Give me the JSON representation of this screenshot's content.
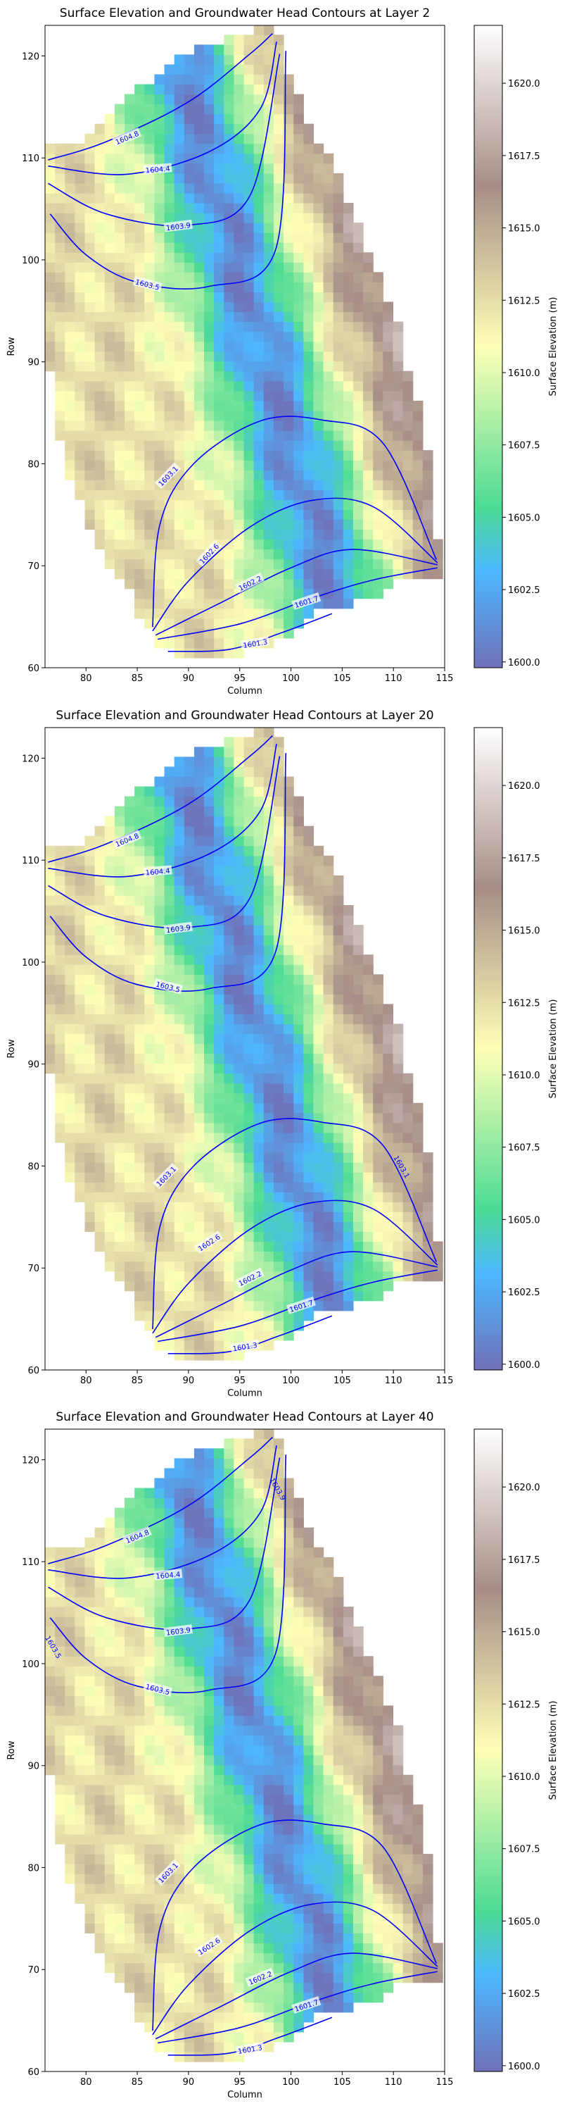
{
  "chart_data": [
    {
      "type": "heatmap",
      "title": "Surface Elevation and Groundwater Head Contours at Layer 2",
      "xlabel": "Column",
      "ylabel": "Row",
      "xlim": [
        76,
        115
      ],
      "ylim": [
        60,
        123
      ],
      "xticks": [
        "80",
        "85",
        "90",
        "95",
        "100",
        "105",
        "110",
        "115"
      ],
      "yticks": [
        "60",
        "70",
        "80",
        "90",
        "100",
        "110",
        "120"
      ],
      "colorbar": {
        "label": "Surface Elevation (m)",
        "range": [
          1599.8,
          1622.0
        ],
        "ticks": [
          "1600.0",
          "1602.5",
          "1605.0",
          "1607.5",
          "1610.0",
          "1612.5",
          "1615.0",
          "1617.5",
          "1620.0"
        ],
        "colormap": "terrain",
        "alpha": 0.7
      },
      "contour_color": "#0000ff",
      "contour_levels": [
        {
          "label": "1604.8",
          "points": [
            [
              76.3,
              109.8
            ],
            [
              82,
              111.6
            ],
            [
              90,
              115.5
            ],
            [
              96,
              120.2
            ],
            [
              98.2,
              122.2
            ]
          ],
          "label_at": [
            84,
            112
          ]
        },
        {
          "label": "1604.4",
          "points": [
            [
              76.3,
              109.2
            ],
            [
              84,
              108.4
            ],
            [
              92,
              110.6
            ],
            [
              97,
              114.8
            ],
            [
              98.6,
              121.4
            ]
          ],
          "label_at": [
            87,
            108.9
          ]
        },
        {
          "label": "1603.9",
          "points": [
            [
              76.3,
              107.5
            ],
            [
              82,
              104.5
            ],
            [
              90,
              103.4
            ],
            [
              96,
              106.3
            ],
            [
              98.9,
              120.2
            ]
          ],
          "label_at": [
            89,
            103.3
          ]
        },
        {
          "label": "1603.5",
          "points": [
            [
              76.5,
              104.5
            ],
            [
              80,
              100.5
            ],
            [
              85,
              97.8
            ],
            [
              92,
              97.4
            ],
            [
              98.5,
              101
            ],
            [
              99.5,
              120.5
            ]
          ],
          "label_at": [
            86,
            97.6
          ]
        },
        {
          "label": "1603.1",
          "points": [
            [
              86.5,
              64
            ],
            [
              87.2,
              74
            ],
            [
              90.5,
              80
            ],
            [
              97,
              84.2
            ],
            [
              103,
              84.3
            ],
            [
              109,
              82
            ],
            [
              114.2,
              70.6
            ]
          ],
          "label_at": [
            88,
            78.8
          ]
        },
        {
          "label": "1602.6",
          "points": [
            [
              86.5,
              63.6
            ],
            [
              90,
              68.5
            ],
            [
              96,
              73.8
            ],
            [
              102,
              76.4
            ],
            [
              108,
              75.8
            ],
            [
              114.3,
              70.3
            ]
          ],
          "label_at": [
            92,
            71.2
          ]
        },
        {
          "label": "1602.2",
          "points": [
            [
              86.8,
              63.2
            ],
            [
              93,
              66.3
            ],
            [
              100,
              69.8
            ],
            [
              106,
              71.6
            ],
            [
              114.3,
              70.1
            ]
          ],
          "label_at": [
            96,
            68.3
          ]
        },
        {
          "label": "1601.7",
          "points": [
            [
              87,
              62.8
            ],
            [
              95,
              64.3
            ],
            [
              102,
              66.8
            ],
            [
              108,
              68.6
            ],
            [
              114.3,
              69.8
            ]
          ],
          "label_at": [
            101.5,
            66.5
          ]
        },
        {
          "label": "1601.3",
          "points": [
            [
              88,
              61.6
            ],
            [
              94,
              61.8
            ],
            [
              99,
              63.4
            ],
            [
              104,
              65.3
            ]
          ],
          "label_at": [
            96.5,
            62.4
          ]
        }
      ],
      "extra_labels": []
    },
    {
      "type": "heatmap",
      "title": "Surface Elevation and Groundwater Head Contours at Layer 20",
      "xlabel": "Column",
      "ylabel": "Row",
      "xlim": [
        76,
        115
      ],
      "ylim": [
        60,
        123
      ],
      "xticks": [
        "80",
        "85",
        "90",
        "95",
        "100",
        "105",
        "110",
        "115"
      ],
      "yticks": [
        "60",
        "70",
        "80",
        "90",
        "100",
        "110",
        "120"
      ],
      "colorbar": {
        "label": "Surface Elevation (m)",
        "range": [
          1599.8,
          1622.0
        ],
        "ticks": [
          "1600.0",
          "1602.5",
          "1605.0",
          "1607.5",
          "1610.0",
          "1612.5",
          "1615.0",
          "1617.5",
          "1620.0"
        ],
        "colormap": "terrain",
        "alpha": 0.7
      },
      "contour_color": "#0000ff",
      "contour_levels": [
        {
          "label": "1604.8",
          "points": [
            [
              76.3,
              109.8
            ],
            [
              82,
              111.6
            ],
            [
              90,
              115.5
            ],
            [
              96,
              120.2
            ],
            [
              98.2,
              122.2
            ]
          ],
          "label_at": [
            84,
            112
          ]
        },
        {
          "label": "1604.4",
          "points": [
            [
              76.3,
              109.2
            ],
            [
              84,
              108.4
            ],
            [
              92,
              110.6
            ],
            [
              97,
              114.8
            ],
            [
              98.6,
              121.4
            ]
          ],
          "label_at": [
            87,
            108.9
          ]
        },
        {
          "label": "1603.9",
          "points": [
            [
              76.3,
              107.5
            ],
            [
              82,
              104.5
            ],
            [
              90,
              103.4
            ],
            [
              96,
              106.3
            ],
            [
              98.9,
              120.2
            ]
          ],
          "label_at": [
            89,
            103.3
          ]
        },
        {
          "label": "1603.5",
          "points": [
            [
              76.5,
              104.5
            ],
            [
              80,
              100.5
            ],
            [
              85,
              97.8
            ],
            [
              92,
              97.4
            ],
            [
              98.5,
              101
            ],
            [
              99.5,
              120.5
            ]
          ],
          "label_at": [
            88,
            97.6
          ]
        },
        {
          "label": "1603.1",
          "points": [
            [
              86.5,
              64
            ],
            [
              87.2,
              74
            ],
            [
              90.5,
              80
            ],
            [
              97,
              84.2
            ],
            [
              103,
              84.3
            ],
            [
              109,
              82
            ],
            [
              114.2,
              70.6
            ]
          ],
          "label_at": [
            87.8,
            79
          ]
        },
        {
          "label": "1602.6",
          "points": [
            [
              86.5,
              63.6
            ],
            [
              90,
              68.5
            ],
            [
              96,
              73.8
            ],
            [
              102,
              76.4
            ],
            [
              108,
              75.8
            ],
            [
              114.3,
              70.3
            ]
          ],
          "label_at": [
            92,
            72.5
          ]
        },
        {
          "label": "1602.2",
          "points": [
            [
              86.8,
              63.2
            ],
            [
              93,
              66.3
            ],
            [
              100,
              69.8
            ],
            [
              106,
              71.6
            ],
            [
              114.3,
              70.1
            ]
          ],
          "label_at": [
            96,
            69
          ]
        },
        {
          "label": "1601.7",
          "points": [
            [
              87,
              62.8
            ],
            [
              95,
              64.3
            ],
            [
              102,
              66.8
            ],
            [
              108,
              68.6
            ],
            [
              114.3,
              69.8
            ]
          ],
          "label_at": [
            101,
            66.3
          ]
        },
        {
          "label": "1601.3",
          "points": [
            [
              88,
              61.6
            ],
            [
              94,
              61.8
            ],
            [
              99,
              63.4
            ],
            [
              104,
              65.3
            ]
          ],
          "label_at": [
            95.5,
            62.3
          ]
        }
      ],
      "extra_labels": [
        {
          "label": "1603.1",
          "at": [
            110.6,
            79.8
          ]
        }
      ]
    },
    {
      "type": "heatmap",
      "title": "Surface Elevation and Groundwater Head Contours at Layer 40",
      "xlabel": "Column",
      "ylabel": "Row",
      "xlim": [
        76,
        115
      ],
      "ylim": [
        60,
        123
      ],
      "xticks": [
        "80",
        "85",
        "90",
        "95",
        "100",
        "105",
        "110",
        "115"
      ],
      "yticks": [
        "60",
        "70",
        "80",
        "90",
        "100",
        "110",
        "120"
      ],
      "colorbar": {
        "label": "Surface Elevation (m)",
        "range": [
          1599.8,
          1622.0
        ],
        "ticks": [
          "1600.0",
          "1602.5",
          "1605.0",
          "1607.5",
          "1610.0",
          "1612.5",
          "1615.0",
          "1617.5",
          "1620.0"
        ],
        "colormap": "terrain",
        "alpha": 0.7
      },
      "contour_color": "#0000ff",
      "contour_levels": [
        {
          "label": "1604.8",
          "points": [
            [
              76.3,
              109.8
            ],
            [
              82,
              111.6
            ],
            [
              90,
              115.5
            ],
            [
              96,
              120.2
            ],
            [
              98.2,
              122.2
            ]
          ],
          "label_at": [
            85,
            112.5
          ]
        },
        {
          "label": "1604.4",
          "points": [
            [
              76.3,
              109.2
            ],
            [
              84,
              108.4
            ],
            [
              92,
              110.6
            ],
            [
              97,
              114.8
            ],
            [
              98.6,
              121.4
            ]
          ],
          "label_at": [
            88,
            108.7
          ]
        },
        {
          "label": "1603.9",
          "points": [
            [
              76.3,
              107.5
            ],
            [
              82,
              104.5
            ],
            [
              90,
              103.4
            ],
            [
              96,
              106.3
            ],
            [
              98.9,
              120.2
            ]
          ],
          "label_at": [
            89,
            103.2
          ]
        },
        {
          "label": "1603.5",
          "points": [
            [
              76.5,
              104.5
            ],
            [
              80,
              100.5
            ],
            [
              85,
              97.8
            ],
            [
              92,
              97.4
            ],
            [
              98.5,
              101
            ],
            [
              99.5,
              120.5
            ]
          ],
          "label_at": [
            87,
            97.5
          ]
        },
        {
          "label": "1603.1",
          "points": [
            [
              86.5,
              64
            ],
            [
              87.2,
              74
            ],
            [
              90.5,
              80
            ],
            [
              97,
              84.2
            ],
            [
              103,
              84.3
            ],
            [
              109,
              82
            ],
            [
              114.2,
              70.6
            ]
          ],
          "label_at": [
            88,
            79.5
          ]
        },
        {
          "label": "1602.6",
          "points": [
            [
              86.5,
              63.6
            ],
            [
              90,
              68.5
            ],
            [
              96,
              73.8
            ],
            [
              102,
              76.4
            ],
            [
              108,
              75.8
            ],
            [
              114.3,
              70.3
            ]
          ],
          "label_at": [
            92,
            72.3
          ]
        },
        {
          "label": "1602.2",
          "points": [
            [
              86.8,
              63.2
            ],
            [
              93,
              66.3
            ],
            [
              100,
              69.8
            ],
            [
              106,
              71.6
            ],
            [
              114.3,
              70.1
            ]
          ],
          "label_at": [
            97,
            69.2
          ]
        },
        {
          "label": "1601.7",
          "points": [
            [
              87,
              62.8
            ],
            [
              95,
              64.3
            ],
            [
              102,
              66.8
            ],
            [
              108,
              68.6
            ],
            [
              114.3,
              69.8
            ]
          ],
          "label_at": [
            101.5,
            66.5
          ]
        },
        {
          "label": "1601.3",
          "points": [
            [
              88,
              61.6
            ],
            [
              94,
              61.8
            ],
            [
              99,
              63.4
            ],
            [
              104,
              65.3
            ]
          ],
          "label_at": [
            96,
            62.2
          ]
        }
      ],
      "extra_labels": [
        {
          "label": "1603.5",
          "at": [
            76.6,
            101.5
          ]
        },
        {
          "label": "1603.9",
          "at": [
            98.5,
            117
          ]
        }
      ]
    }
  ]
}
